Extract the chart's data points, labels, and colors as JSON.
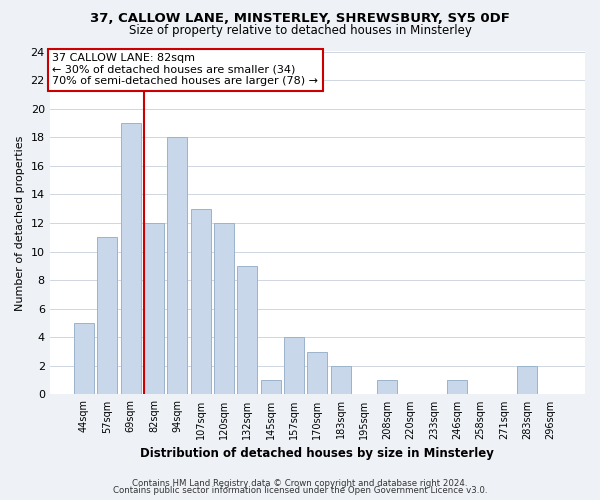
{
  "title_line1": "37, CALLOW LANE, MINSTERLEY, SHREWSBURY, SY5 0DF",
  "title_line2": "Size of property relative to detached houses in Minsterley",
  "xlabel": "Distribution of detached houses by size in Minsterley",
  "ylabel": "Number of detached properties",
  "bar_labels": [
    "44sqm",
    "57sqm",
    "69sqm",
    "82sqm",
    "94sqm",
    "107sqm",
    "120sqm",
    "132sqm",
    "145sqm",
    "157sqm",
    "170sqm",
    "183sqm",
    "195sqm",
    "208sqm",
    "220sqm",
    "233sqm",
    "246sqm",
    "258sqm",
    "271sqm",
    "283sqm",
    "296sqm"
  ],
  "bar_values": [
    5,
    11,
    19,
    12,
    18,
    13,
    12,
    9,
    1,
    4,
    3,
    2,
    0,
    1,
    0,
    0,
    1,
    0,
    0,
    2,
    0
  ],
  "bar_color": "#c8d8ea",
  "bar_edge_color": "#9ab4cc",
  "vline_color": "#cc0000",
  "annotation_title": "37 CALLOW LANE: 82sqm",
  "annotation_line1": "← 30% of detached houses are smaller (34)",
  "annotation_line2": "70% of semi-detached houses are larger (78) →",
  "annotation_box_color": "#ffffff",
  "annotation_box_edge": "#cc0000",
  "ylim": [
    0,
    24
  ],
  "yticks": [
    0,
    2,
    4,
    6,
    8,
    10,
    12,
    14,
    16,
    18,
    20,
    22,
    24
  ],
  "footer_line1": "Contains HM Land Registry data © Crown copyright and database right 2024.",
  "footer_line2": "Contains public sector information licensed under the Open Government Licence v3.0.",
  "bg_color": "#eef2f6",
  "plot_bg_color": "#ffffff",
  "grid_color": "#c8d0da"
}
